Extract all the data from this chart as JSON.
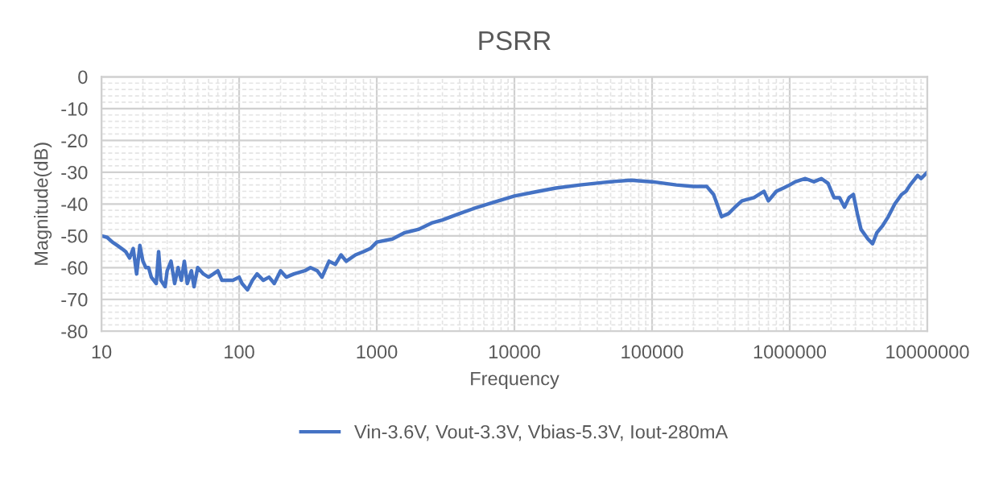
{
  "chart_data": {
    "type": "line",
    "title": "PSRR",
    "xlabel": "Frequency",
    "ylabel": "Magnitude(dB)",
    "log": "x",
    "grid": true,
    "legend": "bottom",
    "marker": "none",
    "line_style": "solid",
    "xlim": [
      10,
      10000000
    ],
    "xticks": [
      10,
      100,
      1000,
      10000,
      100000,
      1000000,
      10000000
    ],
    "ylim": [
      -80,
      0
    ],
    "yticks": [
      -80,
      -70,
      -60,
      -50,
      -40,
      -30,
      -20,
      -10,
      0
    ],
    "x": [
      10,
      11,
      12,
      13,
      14,
      15,
      16,
      17,
      18,
      19,
      20,
      21,
      22,
      23,
      25,
      26,
      27,
      29,
      30,
      32,
      34,
      36,
      38,
      40,
      42,
      45,
      47,
      50,
      55,
      60,
      65,
      70,
      75,
      80,
      90,
      100,
      105,
      115,
      125,
      135,
      150,
      165,
      180,
      200,
      220,
      250,
      300,
      330,
      370,
      400,
      450,
      500,
      550,
      600,
      700,
      800,
      900,
      1000,
      1300,
      1600,
      2000,
      2500,
      3000,
      4000,
      5000,
      7000,
      10000,
      15000,
      20000,
      30000,
      50000,
      70000,
      100000,
      150000,
      200000,
      250000,
      280000,
      320000,
      360000,
      400000,
      450000,
      550000,
      650000,
      700000,
      800000,
      900000,
      1000000,
      1100000,
      1300000,
      1500000,
      1700000,
      1900000,
      2100000,
      2300000,
      2500000,
      2700000,
      2900000,
      3100000,
      3300000,
      3700000,
      4000000,
      4300000,
      4700000,
      5200000,
      5800000,
      6500000,
      7000000,
      7500000,
      8500000,
      9000000,
      10000000
    ],
    "series": [
      {
        "name": "Vin-3.6V, Vout-3.3V, Vbias-5.3V, Iout-280mA",
        "color": "#4472c4",
        "values": [
          -50,
          -50.5,
          -52,
          -53,
          -54,
          -55,
          -57,
          -54,
          -62,
          -53,
          -58,
          -60,
          -60,
          -63,
          -65,
          -55,
          -64,
          -66,
          -61,
          -58,
          -65,
          -60,
          -64,
          -58,
          -65,
          -61,
          -66,
          -60,
          -62,
          -63,
          -62,
          -61,
          -64,
          -64,
          -64,
          -63,
          -65,
          -67,
          -64,
          -62,
          -64,
          -63,
          -65,
          -61,
          -63,
          -62,
          -61,
          -60,
          -61,
          -63,
          -58,
          -59,
          -56,
          -58,
          -56,
          -55,
          -54,
          -52,
          -51,
          -49,
          -48,
          -46,
          -45,
          -43,
          -41.5,
          -39.5,
          -37.5,
          -36,
          -35,
          -34,
          -33,
          -32.5,
          -33,
          -34,
          -34.5,
          -34.5,
          -37,
          -44,
          -43,
          -41,
          -39,
          -38,
          -36,
          -39,
          -36,
          -35,
          -34,
          -33,
          -32,
          -33,
          -32,
          -33.5,
          -38,
          -38,
          -41,
          -38,
          -37,
          -43,
          -48,
          -51,
          -52.5,
          -49,
          -47,
          -44,
          -40,
          -37,
          -36,
          -34,
          -31,
          -32,
          -30
        ]
      }
    ]
  }
}
